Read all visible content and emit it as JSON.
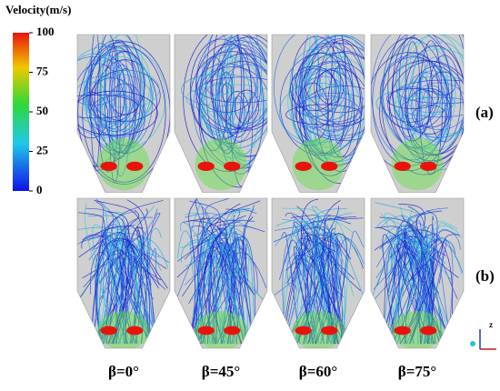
{
  "legend": {
    "title": "Velocity(m/s)",
    "ticks": [
      100,
      75,
      50,
      25,
      0
    ]
  },
  "rows": [
    "(a)",
    "(b)"
  ],
  "columns": [
    "β=0°",
    "β=45°",
    "β=60°",
    "β=75°"
  ],
  "axis_label": "z"
}
